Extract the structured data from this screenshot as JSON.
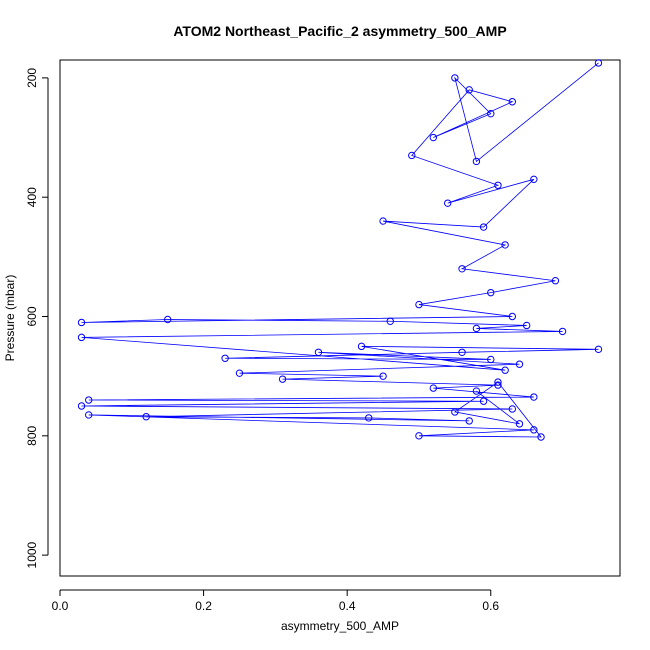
{
  "chart_data": {
    "type": "scatter",
    "title": "ATOM2 Northeast_Pacific_2 asymmetry_500_AMP",
    "xlabel": "asymmetry_500_AMP",
    "ylabel": "Pressure (mbar)",
    "xlim": [
      0.0,
      0.78
    ],
    "ylim": [
      1035,
      170
    ],
    "y_reversed": true,
    "x_ticks": [
      "0.0",
      "0.2",
      "0.4",
      "0.6"
    ],
    "x_tick_values": [
      0.0,
      0.2,
      0.4,
      0.6
    ],
    "y_ticks": [
      "200",
      "400",
      "600",
      "800",
      "1000"
    ],
    "y_tick_values": [
      200,
      400,
      600,
      800,
      1000
    ],
    "grid": false,
    "series": [
      {
        "color": "#0000ff",
        "marker": "open-circle",
        "line": true,
        "points": [
          [
            0.75,
            175
          ],
          [
            0.58,
            340
          ],
          [
            0.55,
            200
          ],
          [
            0.6,
            260
          ],
          [
            0.52,
            300
          ],
          [
            0.63,
            240
          ],
          [
            0.57,
            220
          ],
          [
            0.49,
            330
          ],
          [
            0.61,
            380
          ],
          [
            0.54,
            410
          ],
          [
            0.66,
            370
          ],
          [
            0.59,
            450
          ],
          [
            0.45,
            440
          ],
          [
            0.62,
            480
          ],
          [
            0.56,
            520
          ],
          [
            0.69,
            540
          ],
          [
            0.6,
            560
          ],
          [
            0.5,
            580
          ],
          [
            0.63,
            600
          ],
          [
            0.03,
            610
          ],
          [
            0.15,
            605
          ],
          [
            0.46,
            608
          ],
          [
            0.65,
            615
          ],
          [
            0.58,
            620
          ],
          [
            0.7,
            625
          ],
          [
            0.03,
            635
          ],
          [
            0.62,
            690
          ],
          [
            0.42,
            650
          ],
          [
            0.75,
            655
          ],
          [
            0.56,
            660
          ],
          [
            0.23,
            670
          ],
          [
            0.6,
            672
          ],
          [
            0.36,
            660
          ],
          [
            0.64,
            680
          ],
          [
            0.25,
            695
          ],
          [
            0.45,
            700
          ],
          [
            0.31,
            705
          ],
          [
            0.61,
            715
          ],
          [
            0.52,
            720
          ],
          [
            0.66,
            735
          ],
          [
            0.04,
            740
          ],
          [
            0.59,
            742
          ],
          [
            0.03,
            750
          ],
          [
            0.63,
            755
          ],
          [
            0.12,
            768
          ],
          [
            0.43,
            770
          ],
          [
            0.57,
            775
          ],
          [
            0.04,
            765
          ],
          [
            0.66,
            790
          ],
          [
            0.5,
            800
          ],
          [
            0.67,
            802
          ],
          [
            0.61,
            710
          ],
          [
            0.55,
            760
          ],
          [
            0.64,
            780
          ],
          [
            0.58,
            725
          ]
        ]
      }
    ]
  }
}
